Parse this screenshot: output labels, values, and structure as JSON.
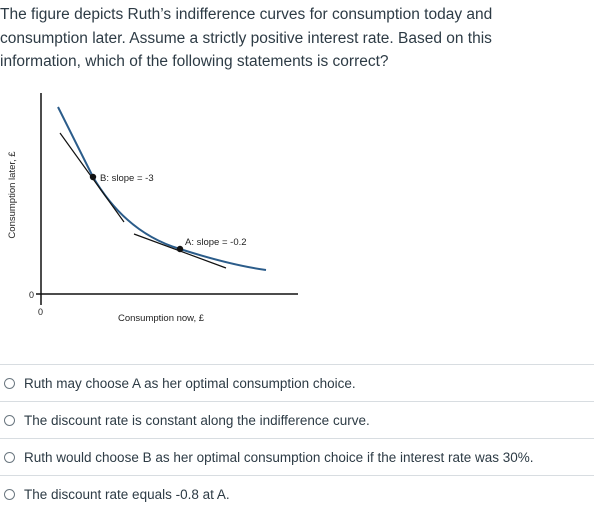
{
  "question": {
    "text": "The figure depicts Ruth’s indifference curves for consumption today and consumption later. Assume a strictly positive interest rate. Based on this information, which of the following statements is correct?"
  },
  "figure": {
    "y_axis_label": "Consumption later, £",
    "x_axis_label": "Consumption now, £",
    "y_origin_label": "0",
    "x_origin_label": "0",
    "point_b_label": "B: slope = -3",
    "point_a_label": "A: slope = -0.2",
    "curve_color": "#2b5c8a",
    "tangent_color": "#111111"
  },
  "answers": [
    {
      "label": "Ruth may choose A as her optimal consumption choice."
    },
    {
      "label": "The discount rate is constant along the indifference curve."
    },
    {
      "label": "Ruth would choose B as her optimal consumption choice if the interest rate was 30%."
    },
    {
      "label": "The discount rate equals -0.8 at A."
    }
  ]
}
